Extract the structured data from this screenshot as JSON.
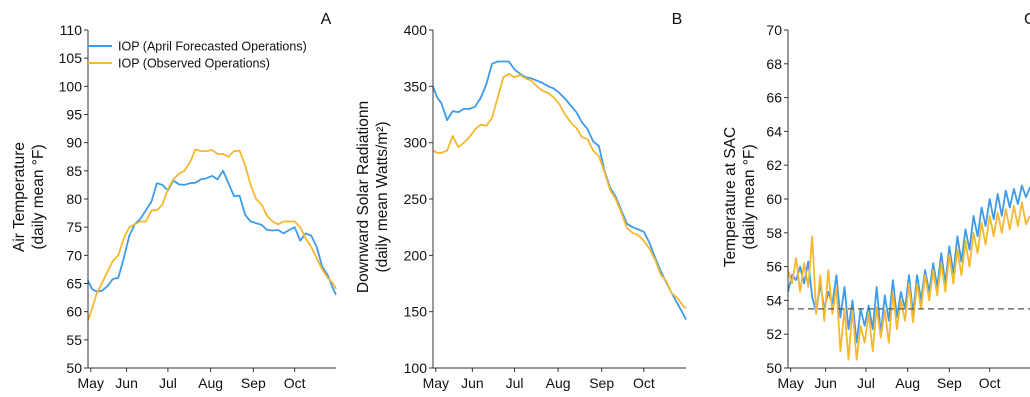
{
  "colors": {
    "forecast": "#3d9be9",
    "observed": "#f5b82e",
    "axis": "#333333",
    "threshold": "#555555"
  },
  "legend": [
    "IOP (April Forecasted Operations)",
    "IOP (Observed Operations)"
  ],
  "chart_data": [
    {
      "type": "line",
      "panel_label": "A",
      "ylabel": [
        "Air Temperature",
        "(daily mean °F)"
      ],
      "ylim": [
        50,
        110
      ],
      "yticks": [
        50,
        55,
        60,
        65,
        70,
        75,
        80,
        85,
        90,
        95,
        100,
        105,
        110
      ],
      "xlim": [
        0,
        180
      ],
      "xtick_labels": [
        "May",
        "Jun",
        "Jul",
        "Aug",
        "Sep",
        "Oct"
      ],
      "xtick_positions": [
        2,
        28,
        58,
        89,
        120,
        150
      ],
      "grid": false,
      "series": [
        {
          "name": "IOP (April Forecasted Operations)",
          "key": "forecast",
          "x": [
            0,
            3,
            6,
            10,
            14,
            18,
            22,
            26,
            30,
            34,
            38,
            42,
            46,
            50,
            54,
            58,
            62,
            66,
            70,
            74,
            78,
            82,
            86,
            90,
            94,
            98,
            102,
            106,
            110,
            114,
            118,
            122,
            126,
            130,
            134,
            138,
            142,
            146,
            150,
            154,
            158,
            162,
            166,
            170,
            174,
            178,
            180
          ],
          "y": [
            65.5,
            64,
            63.6,
            63.7,
            64.5,
            65.8,
            66,
            69.5,
            73.5,
            75.5,
            76.5,
            78,
            79.5,
            82.8,
            82.5,
            81.5,
            83.3,
            82.6,
            82.5,
            82.8,
            82.9,
            83.5,
            83.7,
            84.1,
            83.5,
            85,
            82.8,
            80.5,
            80.6,
            77.2,
            76,
            75.7,
            75.4,
            74.5,
            74.4,
            74.5,
            73.9,
            74.5,
            75,
            72.6,
            73.9,
            73.5,
            71.5,
            68,
            66.5,
            64,
            63
          ]
        },
        {
          "name": "IOP (Observed Operations)",
          "key": "observed",
          "x": [
            0,
            3,
            6,
            10,
            14,
            18,
            22,
            26,
            30,
            34,
            38,
            42,
            46,
            50,
            54,
            58,
            62,
            66,
            70,
            74,
            78,
            82,
            86,
            90,
            94,
            98,
            102,
            106,
            110,
            114,
            118,
            122,
            126,
            130,
            134,
            138,
            142,
            146,
            150,
            154,
            158,
            162,
            166,
            170,
            174,
            178,
            180
          ],
          "y": [
            58.5,
            60.5,
            63,
            65,
            67,
            69,
            70,
            73,
            75,
            75.5,
            76,
            76,
            78,
            78,
            79,
            81.8,
            83.5,
            84.5,
            85,
            86.5,
            88.8,
            88.5,
            88.5,
            88.7,
            88,
            88,
            87.5,
            88.5,
            88.6,
            86,
            82.5,
            80,
            79,
            77,
            76,
            75.5,
            76,
            76,
            76,
            75,
            73,
            71.5,
            69.5,
            67.5,
            66,
            65,
            64
          ]
        }
      ]
    },
    {
      "type": "line",
      "panel_label": "B",
      "ylabel": [
        "Downward Solar Radiationn",
        "(daily mean Watts/m²)"
      ],
      "ylim": [
        100,
        400
      ],
      "yticks": [
        100,
        150,
        200,
        250,
        300,
        350,
        400
      ],
      "xlim": [
        0,
        180
      ],
      "xtick_labels": [
        "May",
        "Jun",
        "Jul",
        "Aug",
        "Sep",
        "Oct"
      ],
      "xtick_positions": [
        2,
        28,
        58,
        89,
        120,
        150
      ],
      "grid": false,
      "series": [
        {
          "name": "IOP (April Forecasted Operations)",
          "key": "forecast",
          "x": [
            0,
            3,
            6,
            10,
            14,
            18,
            22,
            26,
            30,
            34,
            38,
            42,
            46,
            50,
            54,
            58,
            62,
            66,
            70,
            74,
            78,
            82,
            86,
            90,
            94,
            98,
            102,
            106,
            110,
            114,
            118,
            122,
            126,
            130,
            134,
            138,
            142,
            146,
            150,
            154,
            158,
            162,
            166,
            170,
            174,
            178,
            180
          ],
          "y": [
            350,
            340,
            335,
            320,
            328,
            327,
            330,
            330,
            332,
            340,
            352,
            370,
            372,
            372,
            372,
            365,
            361,
            358,
            357,
            355,
            353,
            350,
            348,
            344,
            339,
            333,
            327,
            318,
            312,
            301,
            297,
            275,
            260,
            252,
            240,
            228,
            225,
            223,
            221,
            211,
            198,
            186,
            176,
            166,
            157,
            148,
            143
          ]
        },
        {
          "name": "IOP (Observed Operations)",
          "key": "observed",
          "x": [
            0,
            3,
            6,
            10,
            14,
            18,
            22,
            26,
            30,
            34,
            38,
            42,
            46,
            50,
            54,
            58,
            62,
            66,
            70,
            74,
            78,
            82,
            86,
            90,
            94,
            98,
            102,
            106,
            110,
            114,
            118,
            122,
            126,
            130,
            134,
            138,
            142,
            146,
            150,
            154,
            158,
            162,
            166,
            170,
            174,
            178,
            180
          ],
          "y": [
            293,
            291,
            291,
            293,
            306,
            296,
            300,
            305,
            312,
            316,
            315,
            322,
            340,
            358,
            361,
            358,
            360,
            357,
            355,
            350,
            346,
            344,
            340,
            334,
            325,
            318,
            313,
            305,
            303,
            293,
            288,
            274,
            258,
            250,
            238,
            224,
            220,
            218,
            213,
            206,
            196,
            183,
            177,
            166,
            162,
            155,
            153
          ]
        }
      ]
    },
    {
      "type": "line",
      "panel_label": "C",
      "ylabel": [
        "Temperature at SAC",
        "(daily mean °F)"
      ],
      "ylim": [
        50,
        70
      ],
      "yticks": [
        50,
        52,
        54,
        56,
        58,
        60,
        62,
        64,
        66,
        68,
        70
      ],
      "xlim": [
        0,
        180
      ],
      "xtick_labels": [
        "May",
        "Jun",
        "Jul",
        "Aug",
        "Sep",
        "Oct"
      ],
      "xtick_positions": [
        2,
        28,
        58,
        89,
        120,
        150
      ],
      "grid": false,
      "threshold": 53.5,
      "series": [
        {
          "name": "IOP (April Forecasted Operations)",
          "key": "forecast",
          "x": [
            0,
            3,
            6,
            9,
            12,
            15,
            18,
            21,
            24,
            27,
            30,
            33,
            36,
            39,
            42,
            45,
            48,
            51,
            54,
            57,
            60,
            63,
            66,
            69,
            72,
            75,
            78,
            81,
            84,
            87,
            90,
            93,
            96,
            99,
            102,
            105,
            108,
            111,
            114,
            117,
            120,
            123,
            126,
            129,
            132,
            135,
            138,
            141,
            144,
            147,
            150,
            153,
            156,
            159,
            162,
            165,
            168,
            171,
            174,
            177,
            180
          ],
          "y": [
            54.5,
            55.5,
            55.2,
            56,
            55,
            56.3,
            54.2,
            53.3,
            55,
            53.5,
            54.5,
            53.8,
            55.5,
            53,
            54.8,
            52.3,
            54,
            51.5,
            53.5,
            52.5,
            53.7,
            52.3,
            54.8,
            52,
            54.3,
            52.8,
            55.2,
            53,
            54.5,
            53.5,
            55.5,
            53.2,
            55.5,
            54,
            55.8,
            54.5,
            56.2,
            54.8,
            56.8,
            55,
            57.2,
            55.6,
            57.8,
            56.3,
            58.2,
            57,
            59,
            57.8,
            59.5,
            58.4,
            60,
            58.8,
            60.3,
            59,
            60.5,
            59.5,
            60.6,
            59.7,
            60.8,
            60.1,
            60.7
          ]
        },
        {
          "name": "IOP (Observed Operations)",
          "key": "observed",
          "x": [
            0,
            3,
            6,
            9,
            12,
            15,
            18,
            21,
            24,
            27,
            30,
            33,
            36,
            39,
            42,
            45,
            48,
            51,
            54,
            57,
            60,
            63,
            66,
            69,
            72,
            75,
            78,
            81,
            84,
            87,
            90,
            93,
            96,
            99,
            102,
            105,
            108,
            111,
            114,
            117,
            120,
            123,
            126,
            129,
            132,
            135,
            138,
            141,
            144,
            147,
            150,
            153,
            156,
            159,
            162,
            165,
            168,
            171,
            174,
            177,
            180
          ],
          "y": [
            55.8,
            55,
            56.5,
            54.5,
            56.2,
            54.8,
            57.8,
            53.2,
            55.5,
            52.8,
            55.8,
            53.2,
            54.8,
            51,
            53.5,
            50.5,
            53.5,
            50.5,
            52.5,
            51.5,
            53.2,
            51,
            53.6,
            51.8,
            53.4,
            51.5,
            54.5,
            52.3,
            54,
            52.8,
            55,
            52.7,
            55,
            53.5,
            55.5,
            54,
            55.8,
            54.3,
            56.2,
            54.5,
            56.7,
            55,
            57,
            55.5,
            57.5,
            56,
            58,
            56.8,
            58.6,
            57.3,
            59,
            57.8,
            59.2,
            58,
            59.4,
            58.2,
            59.6,
            58.4,
            59.8,
            58.5,
            59
          ]
        }
      ]
    }
  ]
}
